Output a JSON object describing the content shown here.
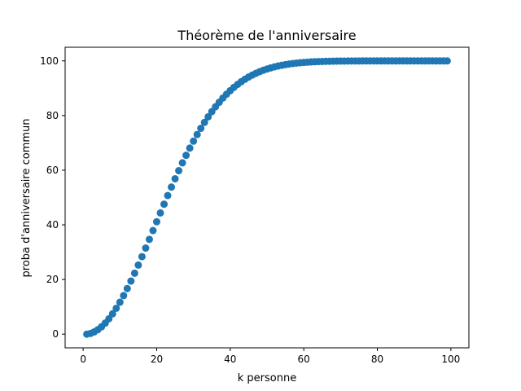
{
  "chart_data": {
    "type": "scatter",
    "title": "Théorème de l'anniversaire",
    "xlabel": "k personne",
    "ylabel": "proba d'anniversaire commun",
    "xlim": [
      -4.9,
      104.9
    ],
    "ylim": [
      -5.0,
      105.0
    ],
    "x_ticks": [
      0,
      20,
      40,
      60,
      80,
      100
    ],
    "y_ticks": [
      0,
      20,
      40,
      60,
      80,
      100
    ],
    "grid": false,
    "marker_color": "#1f77b4",
    "series": [
      {
        "x": [
          1,
          2,
          3,
          4,
          5,
          6,
          7,
          8,
          9,
          10,
          11,
          12,
          13,
          14,
          15,
          16,
          17,
          18,
          19,
          20,
          21,
          22,
          23,
          24,
          25,
          26,
          27,
          28,
          29,
          30,
          31,
          32,
          33,
          34,
          35,
          36,
          37,
          38,
          39,
          40,
          41,
          42,
          43,
          44,
          45,
          46,
          47,
          48,
          49,
          50,
          51,
          52,
          53,
          54,
          55,
          56,
          57,
          58,
          59,
          60,
          61,
          62,
          63,
          64,
          65,
          66,
          67,
          68,
          69,
          70,
          71,
          72,
          73,
          74,
          75,
          76,
          77,
          78,
          79,
          80,
          81,
          82,
          83,
          84,
          85,
          86,
          87,
          88,
          89,
          90,
          91,
          92,
          93,
          94,
          95,
          96,
          97,
          98,
          99
        ],
        "y": [
          0.0,
          0.27,
          0.82,
          1.64,
          2.71,
          4.05,
          5.62,
          7.43,
          9.46,
          11.69,
          14.11,
          16.7,
          19.44,
          22.31,
          25.29,
          28.36,
          31.5,
          34.69,
          37.91,
          41.14,
          44.37,
          47.57,
          50.73,
          53.83,
          56.87,
          59.82,
          62.69,
          65.45,
          68.1,
          70.63,
          73.05,
          75.33,
          77.5,
          79.53,
          81.44,
          83.22,
          84.87,
          86.41,
          87.82,
          89.12,
          90.32,
          91.4,
          92.39,
          93.29,
          94.1,
          94.83,
          95.48,
          96.06,
          96.58,
          97.04,
          97.45,
          97.81,
          98.13,
          98.4,
          98.64,
          98.85,
          99.04,
          99.19,
          99.33,
          99.44,
          99.54,
          99.62,
          99.69,
          99.75,
          99.8,
          99.84,
          99.87,
          99.9,
          99.92,
          99.94,
          99.95,
          99.96,
          99.97,
          99.98,
          99.98,
          99.99,
          99.99,
          99.99,
          99.99,
          100.0,
          100.0,
          100.0,
          100.0,
          100.0,
          100.0,
          100.0,
          100.0,
          100.0,
          100.0,
          100.0,
          100.0,
          100.0,
          100.0,
          100.0,
          100.0,
          100.0,
          100.0,
          100.0,
          100.0
        ]
      }
    ]
  }
}
